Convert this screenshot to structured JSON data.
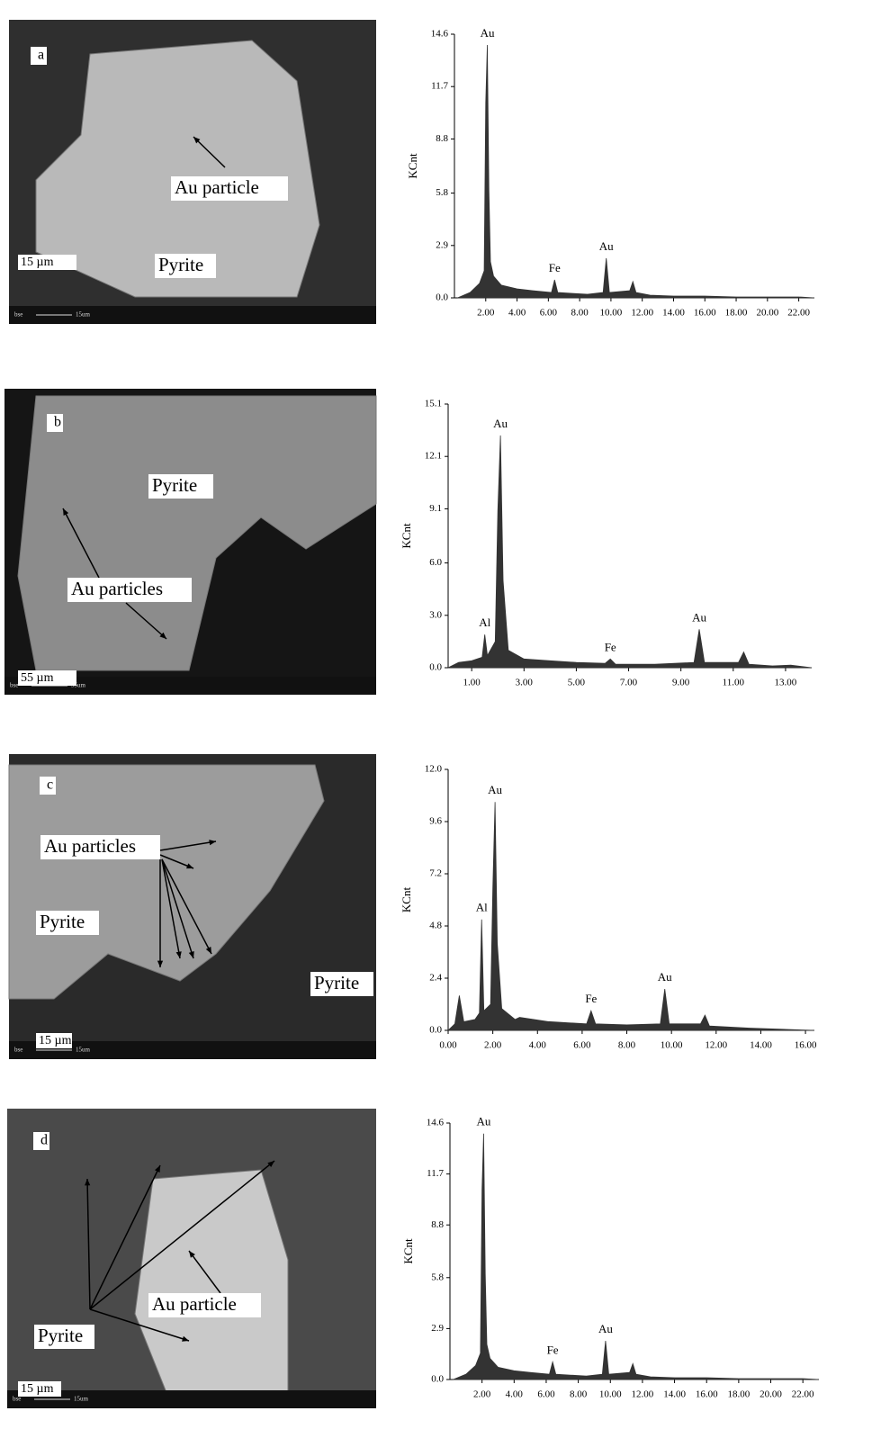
{
  "images": [
    {
      "letter": "a",
      "labels": [
        "Au particle",
        "Pyrite"
      ],
      "scale": "15 µm",
      "footer": [
        "bse",
        "15um"
      ]
    },
    {
      "letter": "b",
      "labels": [
        "Pyrite",
        "Au particles"
      ],
      "scale": "55 µm",
      "footer": [
        "bse",
        "55um"
      ]
    },
    {
      "letter": "c",
      "labels": [
        "Au particles",
        "Pyrite",
        "Pyrite"
      ],
      "scale": "15 µm",
      "footer": [
        "bse",
        "15um"
      ]
    },
    {
      "letter": "d",
      "labels": [
        "Au particle",
        "Pyrite"
      ],
      "scale": "15 µm",
      "footer": [
        "bse",
        "15um"
      ]
    }
  ],
  "chart_data": [
    {
      "type": "spectrum",
      "y_label": "KCnt",
      "color": "#333333",
      "xlim": [
        0,
        23
      ],
      "ylim": [
        0,
        14.6
      ],
      "xticks": [
        {
          "value": 2,
          "label": "2.00"
        },
        {
          "value": 4,
          "label": "4.00"
        },
        {
          "value": 6,
          "label": "6.00"
        },
        {
          "value": 8,
          "label": "8.00"
        },
        {
          "value": 10,
          "label": "10.00"
        },
        {
          "value": 12,
          "label": "12.00"
        },
        {
          "value": 14,
          "label": "14.00"
        },
        {
          "value": 16,
          "label": "16.00"
        },
        {
          "value": 18,
          "label": "18.00"
        },
        {
          "value": 20,
          "label": "20.00"
        },
        {
          "value": 22,
          "label": "22.00"
        }
      ],
      "yticks": [
        {
          "value": 0,
          "label": "0.0"
        },
        2.9,
        5.8,
        8.8,
        11.7,
        14.6
      ],
      "x": [
        0.2,
        1.0,
        1.6,
        1.9,
        2.0,
        2.1,
        2.2,
        2.3,
        2.5,
        3.0,
        4.0,
        5.0,
        6.2,
        6.4,
        6.6,
        7.5,
        8.5,
        9.5,
        9.7,
        9.9,
        11.2,
        11.4,
        11.6,
        12.5,
        14,
        16,
        18,
        20,
        22,
        23
      ],
      "values": [
        0,
        0.3,
        0.8,
        1.5,
        10.8,
        14.0,
        6.0,
        2.0,
        1.2,
        0.7,
        0.5,
        0.4,
        0.3,
        1.0,
        0.3,
        0.25,
        0.2,
        0.3,
        2.2,
        0.3,
        0.4,
        0.9,
        0.3,
        0.15,
        0.1,
        0.1,
        0.05,
        0.05,
        0.05,
        0
      ],
      "annotations": [
        {
          "text": "Au",
          "x": 2.1,
          "y": 14.0
        },
        {
          "text": "Fe",
          "x": 6.4,
          "y": 1.0
        },
        {
          "text": "Au",
          "x": 9.7,
          "y": 2.2
        }
      ]
    },
    {
      "type": "spectrum",
      "y_label": "KCnt",
      "color": "#333333",
      "xlim": [
        0.1,
        14
      ],
      "ylim": [
        0,
        15.1
      ],
      "xticks": [
        {
          "value": 1,
          "label": "1.00"
        },
        {
          "value": 3,
          "label": "3.00"
        },
        {
          "value": 5,
          "label": "5.00"
        },
        {
          "value": 7,
          "label": "7.00"
        },
        {
          "value": 9,
          "label": "9.00"
        },
        {
          "value": 11,
          "label": "11.00"
        },
        {
          "value": 13,
          "label": "13.00"
        }
      ],
      "yticks": [
        {
          "value": 0,
          "label": "0.0"
        },
        {
          "value": 3,
          "label": "3.0"
        },
        {
          "value": 6,
          "label": "6.0"
        },
        9.1,
        12.1,
        15.1
      ],
      "x": [
        0.1,
        0.5,
        1.0,
        1.4,
        1.5,
        1.6,
        1.9,
        2.0,
        2.1,
        2.2,
        2.4,
        3.0,
        4.0,
        5.0,
        6.1,
        6.3,
        6.5,
        8.0,
        9.5,
        9.7,
        9.9,
        11.2,
        11.4,
        11.6,
        12.5,
        13.2,
        14
      ],
      "values": [
        0,
        0.3,
        0.4,
        0.6,
        1.9,
        0.7,
        1.5,
        9.0,
        13.3,
        5.0,
        1.0,
        0.5,
        0.4,
        0.3,
        0.25,
        0.5,
        0.2,
        0.2,
        0.3,
        2.2,
        0.3,
        0.3,
        0.9,
        0.2,
        0.1,
        0.15,
        0
      ],
      "annotations": [
        {
          "text": "Al",
          "x": 1.5,
          "y": 1.9
        },
        {
          "text": "Au",
          "x": 2.1,
          "y": 13.3
        },
        {
          "text": "Fe",
          "x": 6.3,
          "y": 0.5
        },
        {
          "text": "Au",
          "x": 9.7,
          "y": 2.2
        }
      ]
    },
    {
      "type": "spectrum",
      "y_label": "KCnt",
      "color": "#333333",
      "xlim": [
        0,
        16.4
      ],
      "ylim": [
        0,
        12.0
      ],
      "xticks": [
        {
          "value": 0,
          "label": "0.00"
        },
        {
          "value": 2,
          "label": "2.00"
        },
        {
          "value": 4,
          "label": "4.00"
        },
        {
          "value": 6,
          "label": "6.00"
        },
        {
          "value": 8,
          "label": "8.00"
        },
        {
          "value": 10,
          "label": "10.00"
        },
        {
          "value": 12,
          "label": "12.00"
        },
        {
          "value": 14,
          "label": "14.00"
        },
        {
          "value": 16,
          "label": "16.00"
        }
      ],
      "yticks": [
        {
          "value": 0,
          "label": "0.0"
        },
        2.4,
        4.8,
        7.2,
        9.6,
        {
          "value": 12,
          "label": "12.0"
        }
      ],
      "x": [
        0,
        0.3,
        0.5,
        0.7,
        1.2,
        1.4,
        1.5,
        1.6,
        1.9,
        2.0,
        2.1,
        2.2,
        2.4,
        3.0,
        3.2,
        4.5,
        6.2,
        6.4,
        6.6,
        8.0,
        9.5,
        9.7,
        9.9,
        11.3,
        11.5,
        11.7,
        13.5,
        16.4
      ],
      "values": [
        0,
        0.3,
        1.6,
        0.4,
        0.5,
        0.8,
        5.1,
        0.9,
        1.2,
        6.5,
        10.5,
        4.0,
        1.0,
        0.5,
        0.6,
        0.4,
        0.3,
        0.9,
        0.3,
        0.25,
        0.3,
        1.9,
        0.3,
        0.3,
        0.7,
        0.2,
        0.1,
        0
      ],
      "annotations": [
        {
          "text": "Al",
          "x": 1.5,
          "y": 5.1
        },
        {
          "text": "Au",
          "x": 2.1,
          "y": 10.5
        },
        {
          "text": "Fe",
          "x": 6.4,
          "y": 0.9
        },
        {
          "text": "Au",
          "x": 9.7,
          "y": 1.9
        }
      ]
    },
    {
      "type": "spectrum",
      "y_label": "KCnt",
      "color": "#333333",
      "xlim": [
        0,
        23
      ],
      "ylim": [
        0,
        14.6
      ],
      "xticks": [
        {
          "value": 2,
          "label": "2.00"
        },
        {
          "value": 4,
          "label": "4.00"
        },
        {
          "value": 6,
          "label": "6.00"
        },
        {
          "value": 8,
          "label": "8.00"
        },
        {
          "value": 10,
          "label": "10.00"
        },
        {
          "value": 12,
          "label": "12.00"
        },
        {
          "value": 14,
          "label": "14.00"
        },
        {
          "value": 16,
          "label": "16.00"
        },
        {
          "value": 18,
          "label": "18.00"
        },
        {
          "value": 20,
          "label": "20.00"
        },
        {
          "value": 22,
          "label": "22.00"
        }
      ],
      "yticks": [
        {
          "value": 0,
          "label": "0.0"
        },
        2.9,
        5.8,
        8.8,
        11.7,
        14.6
      ],
      "x": [
        0.2,
        1.0,
        1.6,
        1.9,
        2.0,
        2.1,
        2.2,
        2.3,
        2.5,
        3.0,
        4.0,
        5.0,
        6.2,
        6.4,
        6.6,
        7.5,
        8.5,
        9.5,
        9.7,
        9.9,
        11.2,
        11.4,
        11.6,
        12.5,
        14,
        16,
        18,
        20,
        22,
        23
      ],
      "values": [
        0,
        0.3,
        0.8,
        1.5,
        10.8,
        14.0,
        6.0,
        2.0,
        1.2,
        0.7,
        0.5,
        0.4,
        0.3,
        1.0,
        0.3,
        0.25,
        0.2,
        0.3,
        2.2,
        0.3,
        0.4,
        0.9,
        0.3,
        0.15,
        0.1,
        0.1,
        0.05,
        0.05,
        0.05,
        0
      ],
      "annotations": [
        {
          "text": "Au",
          "x": 2.1,
          "y": 14.0
        },
        {
          "text": "Fe",
          "x": 6.4,
          "y": 1.0
        },
        {
          "text": "Au",
          "x": 9.7,
          "y": 2.2
        }
      ]
    }
  ]
}
